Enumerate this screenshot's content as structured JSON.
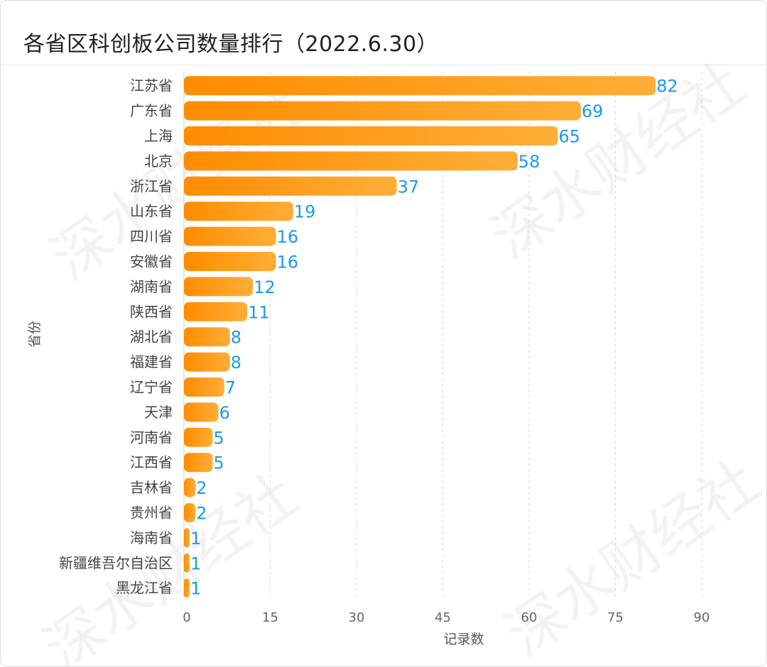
{
  "title": "各省区科创板公司数量排行（2022.6.30）",
  "watermark": "深水财经社",
  "colors": {
    "bar_start": "#ff8c00",
    "bar_end": "#ffae38",
    "value_label": "#1a9be6",
    "grid": "#d9d9d9"
  },
  "chart_data": {
    "type": "bar",
    "orientation": "horizontal",
    "categories": [
      "江苏省",
      "广东省",
      "上海",
      "北京",
      "浙江省",
      "山东省",
      "四川省",
      "安徽省",
      "湖南省",
      "陕西省",
      "湖北省",
      "福建省",
      "辽宁省",
      "天津",
      "河南省",
      "江西省",
      "吉林省",
      "贵州省",
      "海南省",
      "新疆维吾尔自治区",
      "黑龙江省"
    ],
    "values": [
      82,
      69,
      65,
      58,
      37,
      19,
      16,
      16,
      12,
      11,
      8,
      8,
      7,
      6,
      5,
      5,
      2,
      2,
      1,
      1,
      1
    ],
    "xlabel": "记录数",
    "ylabel": "省份",
    "xlim": [
      0,
      90
    ],
    "xticks": [
      0,
      15,
      30,
      45,
      60,
      75,
      90
    ],
    "grid": "vertical dashed",
    "legend": "none"
  }
}
